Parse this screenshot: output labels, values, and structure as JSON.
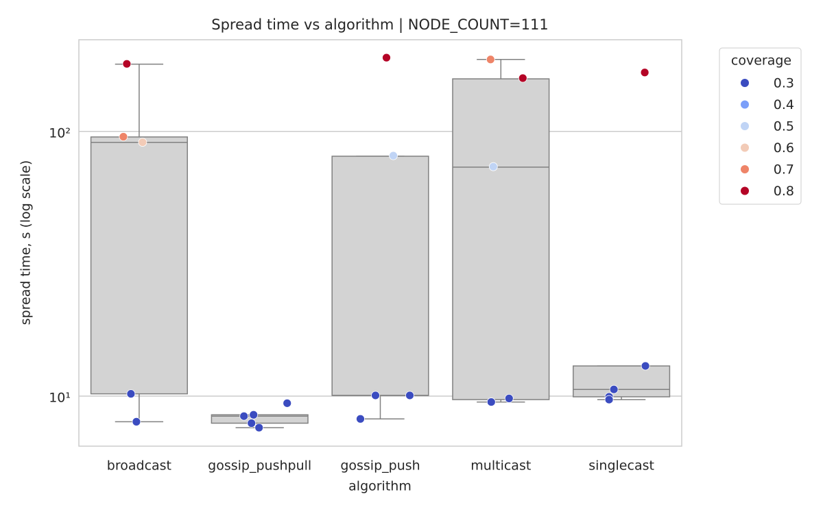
{
  "chart_data": {
    "type": "box",
    "title": "Spread time vs algorithm  |  NODE_COUNT=111",
    "x_label": "algorithm",
    "y_label": "spread time, s (log scale)",
    "log_scale": true,
    "grid": true,
    "categories": [
      "broadcast",
      "gossip_pushpull",
      "gossip_push",
      "multicast",
      "singlecast"
    ],
    "boxes": [
      {
        "whislo": 8.0,
        "q1": 10.2,
        "med": 90.9,
        "q3": 95.3,
        "whishi": 179.5
      },
      {
        "whislo": 7.6,
        "q1": 7.9,
        "med": 8.4,
        "q3": 8.5,
        "whishi": 8.5
      },
      {
        "whislo": 8.2,
        "q1": 10.06,
        "med": 10.06,
        "q3": 80.6,
        "whishi": 80.6
      },
      {
        "whislo": 9.5,
        "q1": 9.7,
        "med": 73.3,
        "q3": 158,
        "whishi": 187
      },
      {
        "whislo": 9.7,
        "q1": 9.94,
        "med": 10.6,
        "q3": 13.0,
        "whishi": 13.0
      }
    ],
    "box_color": "#d3d3d3",
    "legend_title": "coverage",
    "legend_position": "outside-right",
    "series": [
      {
        "name": "0.3",
        "color": "#3b4cc0",
        "points": [
          {
            "category": "broadcast",
            "value": 10.2
          },
          {
            "category": "broadcast",
            "value": 8.0
          },
          {
            "category": "gossip_pushpull",
            "value": 9.4
          },
          {
            "category": "gossip_pushpull",
            "value": 8.4
          },
          {
            "category": "gossip_pushpull",
            "value": 8.5
          },
          {
            "category": "gossip_pushpull",
            "value": 7.9
          },
          {
            "category": "gossip_pushpull",
            "value": 7.6
          },
          {
            "category": "gossip_push",
            "value": 10.06
          },
          {
            "category": "gossip_push",
            "value": 10.06
          },
          {
            "category": "gossip_push",
            "value": 8.2
          },
          {
            "category": "multicast",
            "value": 9.5
          },
          {
            "category": "multicast",
            "value": 9.8
          },
          {
            "category": "singlecast",
            "value": 13.0
          },
          {
            "category": "singlecast",
            "value": 10.6
          },
          {
            "category": "singlecast",
            "value": 9.94
          },
          {
            "category": "singlecast",
            "value": 9.7
          }
        ]
      },
      {
        "name": "0.4",
        "color": "#7b9ff9",
        "points": []
      },
      {
        "name": "0.5",
        "color": "#c0d4f5",
        "points": [
          {
            "category": "gossip_push",
            "value": 81
          },
          {
            "category": "multicast",
            "value": 73.6
          }
        ]
      },
      {
        "name": "0.6",
        "color": "#f2cbb7",
        "points": [
          {
            "category": "broadcast",
            "value": 91
          }
        ]
      },
      {
        "name": "0.7",
        "color": "#ee8468",
        "points": [
          {
            "category": "broadcast",
            "value": 95.5
          },
          {
            "category": "multicast",
            "value": 187
          }
        ]
      },
      {
        "name": "0.8",
        "color": "#b40426",
        "points": [
          {
            "category": "broadcast",
            "value": 180
          },
          {
            "category": "gossip_push",
            "value": 190
          },
          {
            "category": "multicast",
            "value": 159
          },
          {
            "category": "singlecast",
            "value": 167
          }
        ]
      }
    ],
    "ylim": [
      6.47,
      222
    ],
    "yticks": [
      {
        "value": 10,
        "label": "10¹"
      },
      {
        "value": 100,
        "label": "10²"
      }
    ]
  }
}
